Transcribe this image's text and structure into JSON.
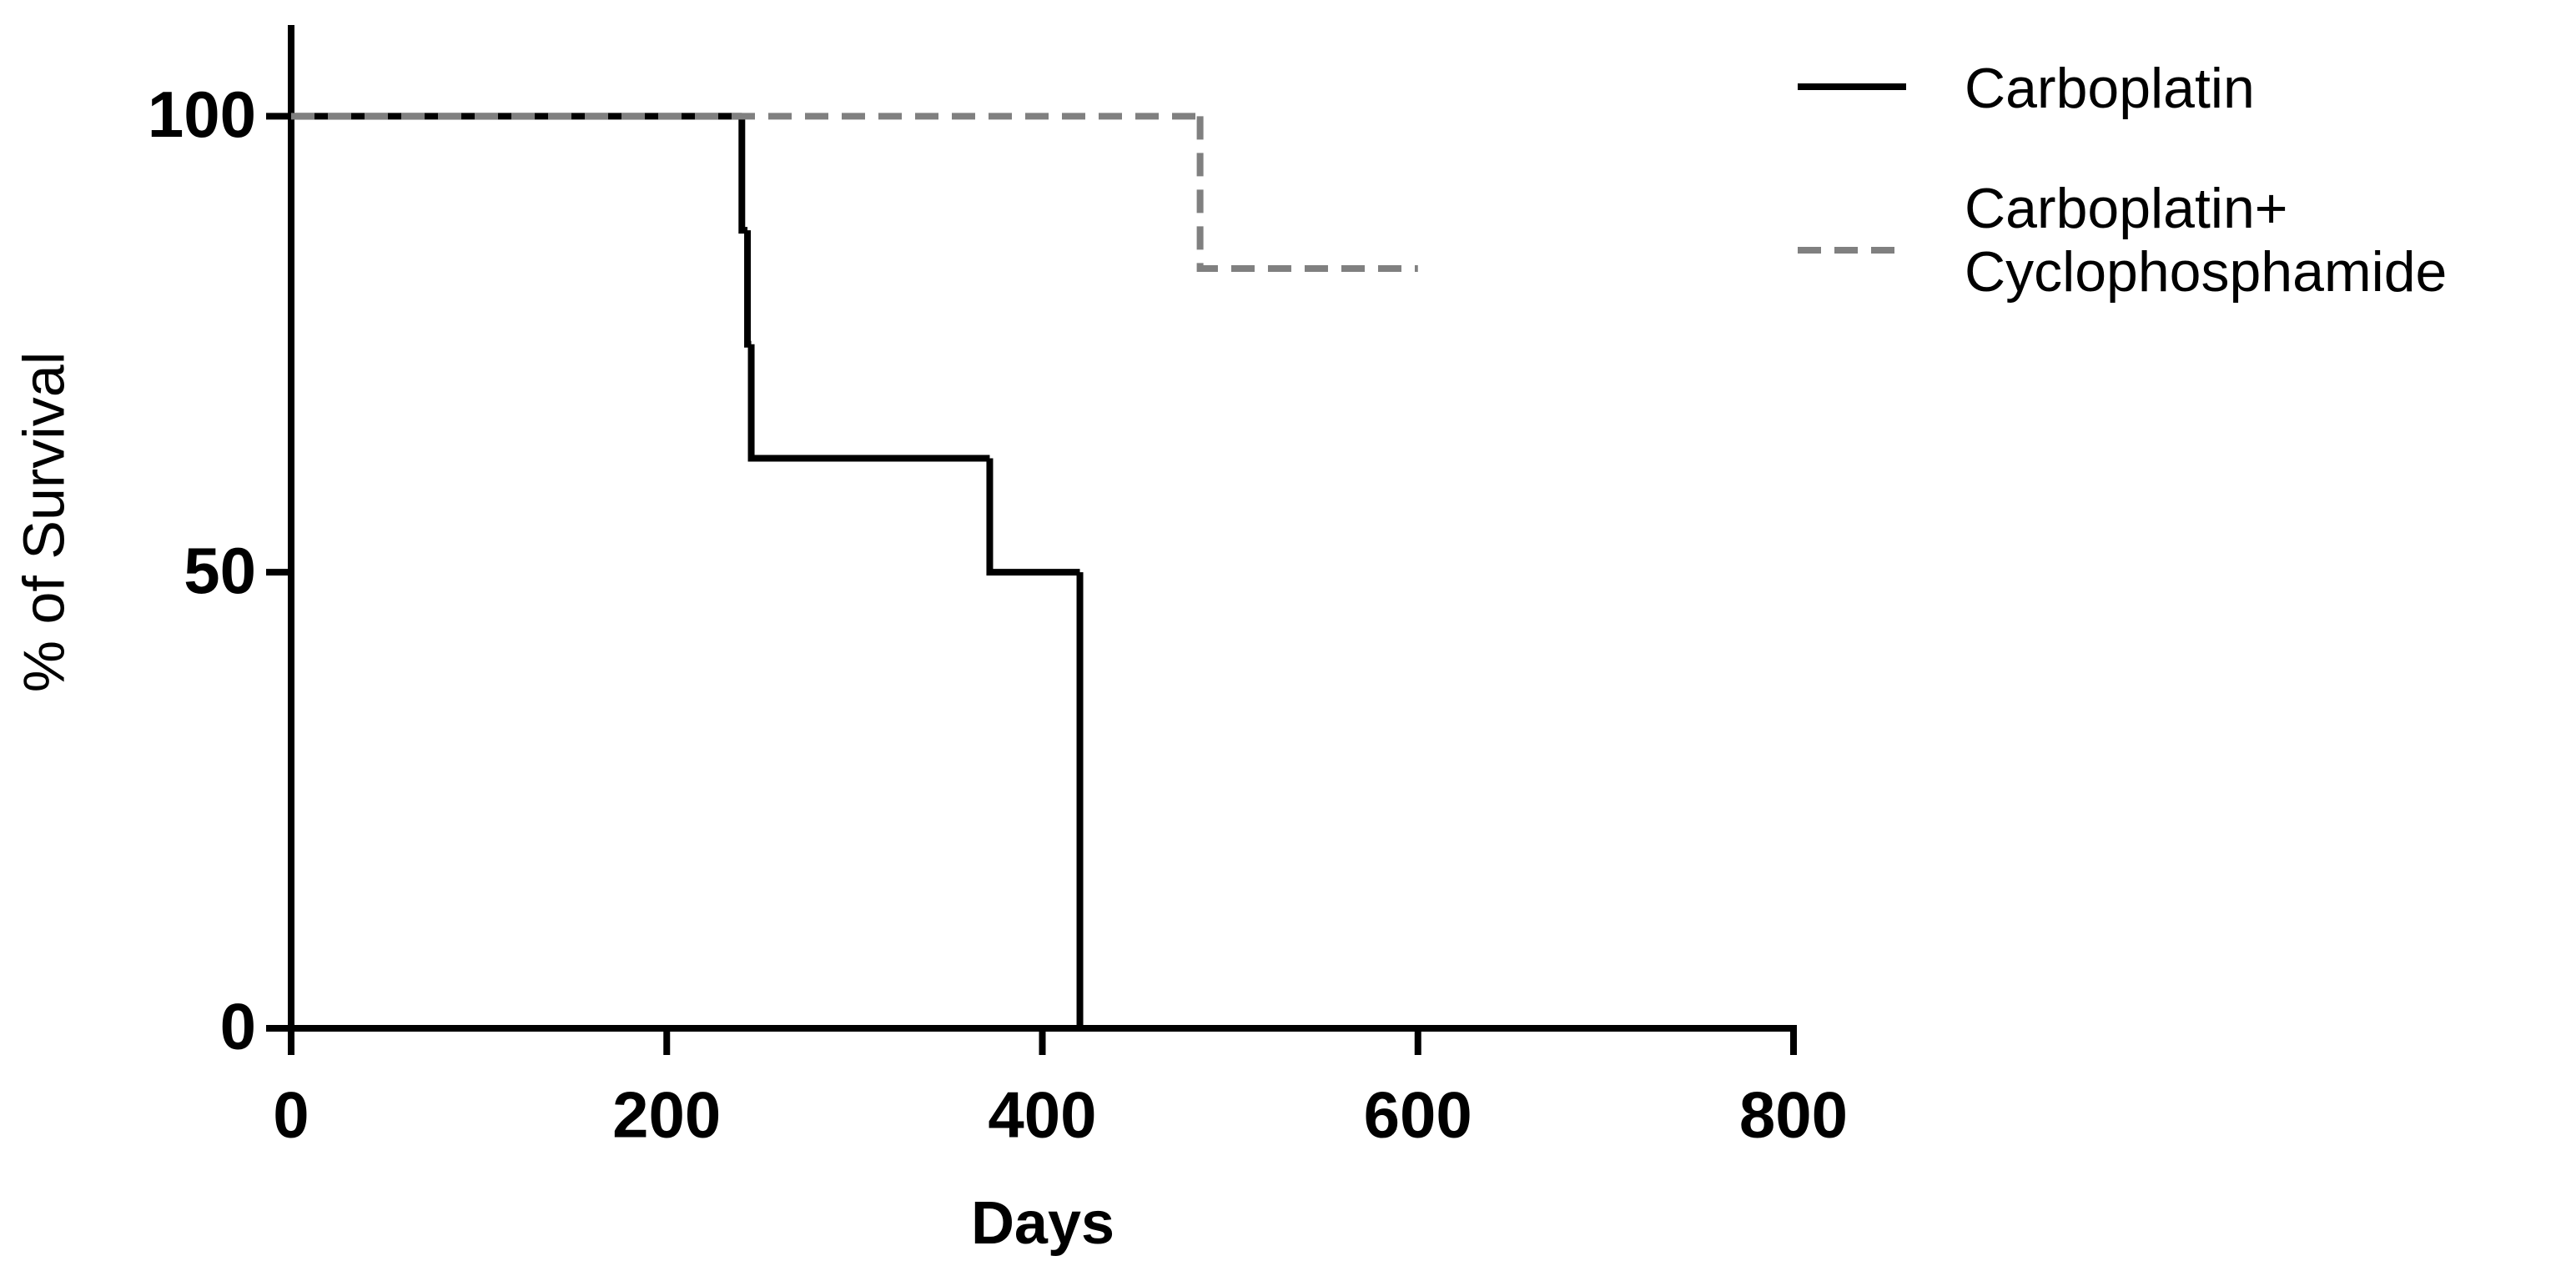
{
  "chart_data": {
    "type": "step",
    "x_label": "Days",
    "y_label": "% of Survival",
    "xlim": [
      0,
      800
    ],
    "xticks": [
      0,
      200,
      400,
      600,
      800
    ],
    "ylim": [
      0,
      110
    ],
    "yticks": [
      0,
      50,
      100
    ],
    "legend": "top-right",
    "series": [
      {
        "name": "Carboplatin",
        "color": "#000000",
        "dashed": false,
        "x": [
          0,
          240,
          243,
          245,
          372,
          420
        ],
        "values": [
          100,
          87.5,
          75,
          62.5,
          50,
          0
        ]
      },
      {
        "name": "Carboplatin+\nCyclophosphamide",
        "color": "#808080",
        "dashed": true,
        "x": [
          0,
          484,
          600
        ],
        "values": [
          100,
          83.3,
          83.3
        ]
      }
    ]
  }
}
